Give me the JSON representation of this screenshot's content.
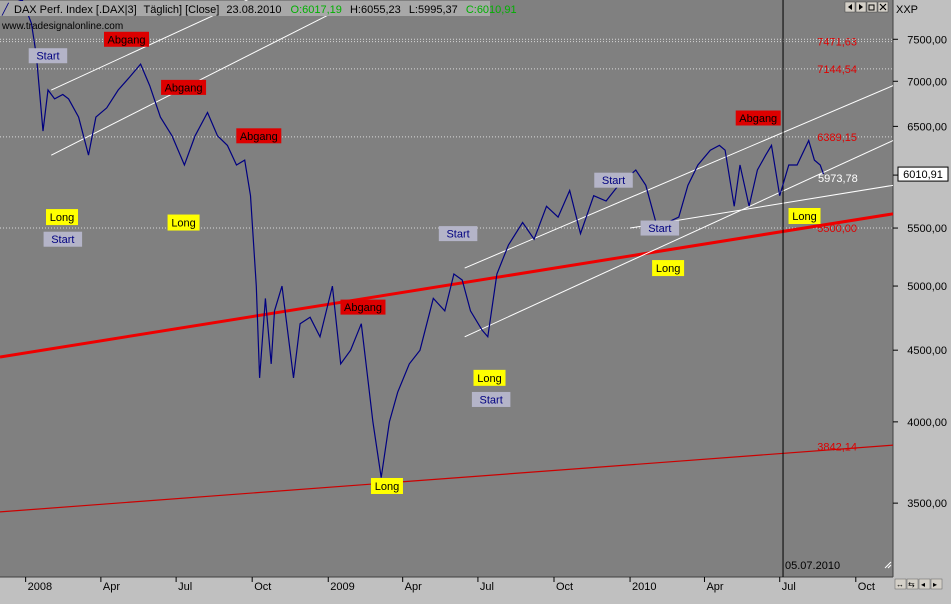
{
  "header": {
    "symbol_text": "DAX Perf. Index [.DAX|3]",
    "period_text": "Täglich] [Close]",
    "date_text": "23.08.2010",
    "open_text": "O:6017,19",
    "high_text": "H:6055,23",
    "low_text": "L:5995,37",
    "close_text": "C:6010,91",
    "watermark_text": "www.tradesignalonline.com",
    "axis_unit_text": "XXP",
    "colors": {
      "open": "#00cc00",
      "high": "#000000",
      "low": "#000000",
      "close": "#00cc00"
    }
  },
  "toolbar": {
    "icons": [
      "arrow-left-icon",
      "arrow-right-icon",
      "restore-icon",
      "close-icon"
    ]
  },
  "chart_data": {
    "type": "line",
    "title": "",
    "price_label": "6010,91",
    "vertical_marker_label": "05.07.2010",
    "x_ticks": [
      "2008",
      "Apr",
      "Jul",
      "Oct",
      "2009",
      "Apr",
      "Jul",
      "Oct",
      "2010",
      "Apr",
      "Jul",
      "Oct"
    ],
    "y_ticks": [
      "7500,00",
      "7000,00",
      "6500,00",
      "6000,00",
      "5500,00",
      "5000,00",
      "4500,00",
      "4000,00",
      "3500,00"
    ],
    "y_tick_values": [
      7500,
      7000,
      6500,
      6000,
      5500,
      5000,
      4500,
      4000,
      3500
    ],
    "ylim": [
      3100,
      8000
    ],
    "xlim": [
      "2007-12-01",
      "2010-11-15"
    ],
    "grid": false,
    "series": [
      {
        "values": [
          [
            "2007-12-01",
            7900
          ],
          [
            "2007-12-15",
            7950
          ],
          [
            "2007-12-28",
            8000
          ],
          [
            "2008-01-08",
            7700
          ],
          [
            "2008-01-14",
            7300
          ],
          [
            "2008-01-22",
            6450
          ],
          [
            "2008-01-28",
            6900
          ],
          [
            "2008-02-05",
            6800
          ],
          [
            "2008-02-15",
            6850
          ],
          [
            "2008-02-22",
            6800
          ],
          [
            "2008-03-05",
            6600
          ],
          [
            "2008-03-17",
            6200
          ],
          [
            "2008-03-26",
            6600
          ],
          [
            "2008-04-08",
            6700
          ],
          [
            "2008-04-22",
            6900
          ],
          [
            "2008-05-06",
            7050
          ],
          [
            "2008-05-19",
            7200
          ],
          [
            "2008-05-30",
            6950
          ],
          [
            "2008-06-12",
            6600
          ],
          [
            "2008-06-26",
            6400
          ],
          [
            "2008-07-11",
            6100
          ],
          [
            "2008-07-24",
            6400
          ],
          [
            "2008-08-08",
            6650
          ],
          [
            "2008-08-20",
            6400
          ],
          [
            "2008-09-01",
            6300
          ],
          [
            "2008-09-12",
            6100
          ],
          [
            "2008-09-22",
            6150
          ],
          [
            "2008-09-29",
            5800
          ],
          [
            "2008-10-06",
            5000
          ],
          [
            "2008-10-10",
            4300
          ],
          [
            "2008-10-17",
            4900
          ],
          [
            "2008-10-24",
            4400
          ],
          [
            "2008-10-28",
            4800
          ],
          [
            "2008-11-06",
            5000
          ],
          [
            "2008-11-20",
            4300
          ],
          [
            "2008-11-28",
            4700
          ],
          [
            "2008-12-10",
            4750
          ],
          [
            "2008-12-22",
            4600
          ],
          [
            "2009-01-06",
            5000
          ],
          [
            "2009-01-16",
            4400
          ],
          [
            "2009-01-28",
            4500
          ],
          [
            "2009-02-10",
            4700
          ],
          [
            "2009-02-24",
            4000
          ],
          [
            "2009-03-06",
            3650
          ],
          [
            "2009-03-16",
            4000
          ],
          [
            "2009-03-26",
            4200
          ],
          [
            "2009-04-09",
            4400
          ],
          [
            "2009-04-22",
            4500
          ],
          [
            "2009-05-08",
            4900
          ],
          [
            "2009-05-22",
            4800
          ],
          [
            "2009-06-02",
            5100
          ],
          [
            "2009-06-12",
            5050
          ],
          [
            "2009-06-22",
            4800
          ],
          [
            "2009-07-06",
            4650
          ],
          [
            "2009-07-13",
            4600
          ],
          [
            "2009-07-24",
            5100
          ],
          [
            "2009-08-07",
            5350
          ],
          [
            "2009-08-24",
            5550
          ],
          [
            "2009-09-07",
            5400
          ],
          [
            "2009-09-22",
            5700
          ],
          [
            "2009-10-06",
            5600
          ],
          [
            "2009-10-20",
            5850
          ],
          [
            "2009-11-02",
            5450
          ],
          [
            "2009-11-18",
            5800
          ],
          [
            "2009-12-03",
            5750
          ],
          [
            "2009-12-18",
            5900
          ],
          [
            "2010-01-08",
            6050
          ],
          [
            "2010-01-20",
            5900
          ],
          [
            "2010-02-05",
            5450
          ],
          [
            "2010-02-15",
            5550
          ],
          [
            "2010-03-01",
            5600
          ],
          [
            "2010-03-12",
            5900
          ],
          [
            "2010-03-24",
            6100
          ],
          [
            "2010-04-08",
            6250
          ],
          [
            "2010-04-19",
            6300
          ],
          [
            "2010-04-26",
            6250
          ],
          [
            "2010-05-07",
            5700
          ],
          [
            "2010-05-14",
            6100
          ],
          [
            "2010-05-25",
            5700
          ],
          [
            "2010-06-04",
            6050
          ],
          [
            "2010-06-14",
            6200
          ],
          [
            "2010-06-21",
            6300
          ],
          [
            "2010-07-01",
            5800
          ],
          [
            "2010-07-12",
            6100
          ],
          [
            "2010-07-22",
            6100
          ],
          [
            "2010-08-05",
            6350
          ],
          [
            "2010-08-12",
            6150
          ],
          [
            "2010-08-19",
            6100
          ],
          [
            "2010-08-23",
            6010
          ]
        ]
      }
    ],
    "dotted_levels": [
      {
        "value": 7471.63,
        "label": "7471,63",
        "label_visible": true
      },
      {
        "value": 7144.54,
        "label": "7144,54",
        "label_visible": true
      },
      {
        "value": 6389.15,
        "label": "6389,15",
        "label_visible": true
      },
      {
        "value": 5500.0,
        "label": "5500,00",
        "label_visible": true
      },
      {
        "value": 7500.0,
        "label": "",
        "label_visible": false
      }
    ],
    "support_line": {
      "from": [
        "2007-12-01",
        4450
      ],
      "to": [
        "2010-11-15",
        5630
      ]
    },
    "lower_line": {
      "value_label": "3842,14",
      "from": [
        "2007-12-01",
        3450
      ],
      "to": [
        "2010-11-15",
        3850
      ]
    },
    "price_line_label": "5973,78",
    "trend_channels": [
      {
        "from": [
          "2008-02-01",
          6900
        ],
        "to": [
          "2008-12-31",
          8500
        ]
      },
      {
        "from": [
          "2008-02-01",
          6200
        ],
        "to": [
          "2008-12-31",
          7800
        ]
      },
      {
        "from": [
          "2009-06-15",
          5150
        ],
        "to": [
          "2010-11-15",
          6950
        ]
      },
      {
        "from": [
          "2009-06-15",
          4600
        ],
        "to": [
          "2010-11-15",
          6350
        ]
      },
      {
        "from": [
          "2010-01-01",
          5500
        ],
        "to": [
          "2010-11-15",
          5900
        ]
      }
    ],
    "annotations": [
      {
        "text": "Start",
        "date": "2008-01-28",
        "value": 7300,
        "style": "gray"
      },
      {
        "text": "Abgang",
        "date": "2008-05-02",
        "value": 7500,
        "style": "red"
      },
      {
        "text": "Long",
        "date": "2008-02-14",
        "value": 5600,
        "style": "yellow"
      },
      {
        "text": "Start",
        "date": "2008-02-15",
        "value": 5400,
        "style": "gray"
      },
      {
        "text": "Abgang",
        "date": "2008-07-10",
        "value": 6930,
        "style": "red"
      },
      {
        "text": "Long",
        "date": "2008-07-10",
        "value": 5550,
        "style": "yellow"
      },
      {
        "text": "Abgang",
        "date": "2008-10-09",
        "value": 6400,
        "style": "red"
      },
      {
        "text": "Abgang",
        "date": "2009-02-12",
        "value": 4830,
        "style": "red"
      },
      {
        "text": "Long",
        "date": "2009-03-13",
        "value": 3600,
        "style": "yellow"
      },
      {
        "text": "Start",
        "date": "2009-06-07",
        "value": 5450,
        "style": "gray"
      },
      {
        "text": "Long",
        "date": "2009-07-15",
        "value": 4300,
        "style": "yellow"
      },
      {
        "text": "Start",
        "date": "2009-07-17",
        "value": 4150,
        "style": "gray"
      },
      {
        "text": "Start",
        "date": "2009-12-12",
        "value": 5950,
        "style": "gray"
      },
      {
        "text": "Start",
        "date": "2010-02-06",
        "value": 5500,
        "style": "gray"
      },
      {
        "text": "Long",
        "date": "2010-02-16",
        "value": 5150,
        "style": "yellow"
      },
      {
        "text": "Abgang",
        "date": "2010-06-05",
        "value": 6590,
        "style": "red"
      },
      {
        "text": "Long",
        "date": "2010-07-31",
        "value": 5610,
        "style": "yellow"
      }
    ]
  }
}
